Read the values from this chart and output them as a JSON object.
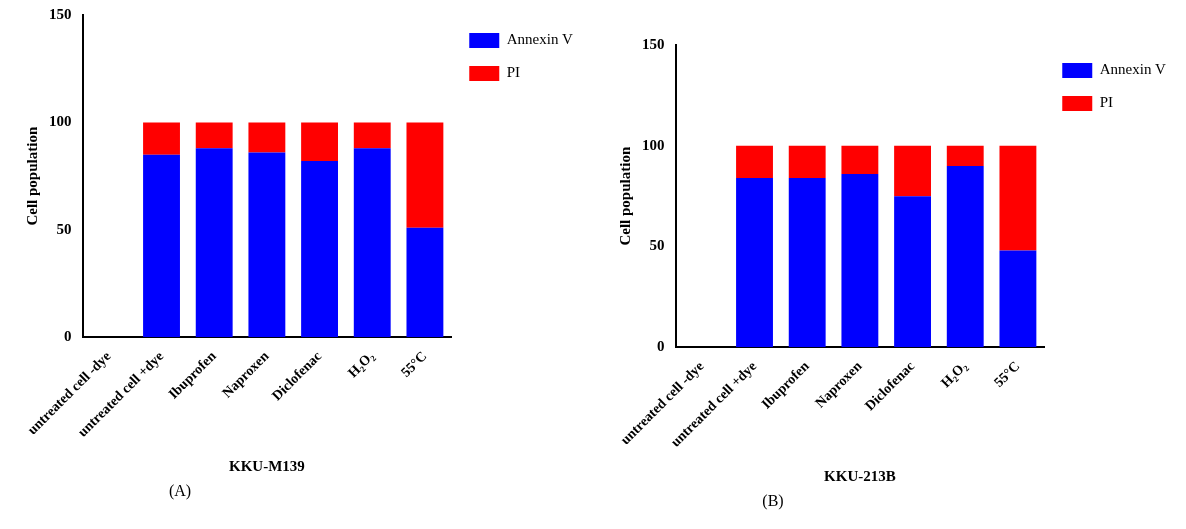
{
  "chart_data": [
    {
      "type": "bar",
      "stacked": true,
      "xlabel": "KKU-M139",
      "ylabel": "Cell population",
      "categories": [
        "untreated cell -dye",
        "untreated cell +dye",
        "Ibuprofen",
        "Naproxen",
        "Diclofenac",
        "H₂O₂",
        "55°C"
      ],
      "series": [
        {
          "name": "Annexin V",
          "color": "#0000ff",
          "values": [
            0,
            85,
            88,
            86,
            82,
            88,
            51
          ]
        },
        {
          "name": "PI",
          "color": "#ff0000",
          "values": [
            0,
            15,
            12,
            14,
            18,
            12,
            49
          ]
        }
      ],
      "ylim": [
        0,
        150
      ],
      "yticks": [
        0,
        50,
        100,
        150
      ],
      "grid": false,
      "legend": "top right",
      "annotations": [
        "(A)"
      ]
    },
    {
      "type": "bar",
      "stacked": true,
      "xlabel": "KKU-213B",
      "ylabel": "Cell population",
      "categories": [
        "untreated cell -dye",
        "untreated cell +dye",
        "Ibuprofen",
        "Naproxen",
        "Diclofenac",
        "H₂O₂",
        "55°C"
      ],
      "series": [
        {
          "name": "Annexin V",
          "color": "#0000ff",
          "values": [
            0,
            84,
            84,
            86,
            75,
            90,
            48
          ]
        },
        {
          "name": "PI",
          "color": "#ff0000",
          "values": [
            0,
            16,
            16,
            14,
            25,
            10,
            52
          ]
        }
      ],
      "ylim": [
        0,
        150
      ],
      "yticks": [
        0,
        50,
        100,
        150
      ],
      "grid": false,
      "legend": "top right",
      "annotations": [
        "(B)"
      ]
    }
  ]
}
